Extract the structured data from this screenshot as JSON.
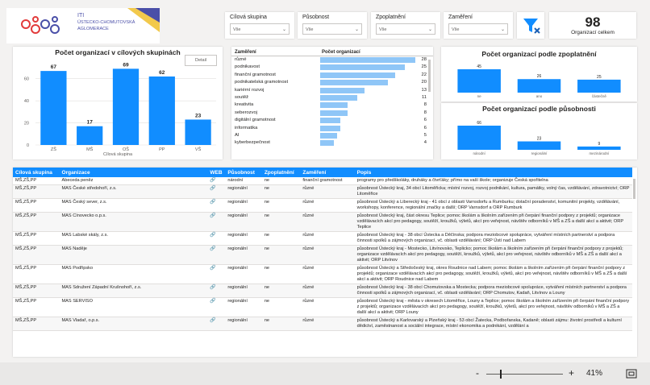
{
  "logo": {
    "line1": "ITI",
    "line2": "ÚSTECKO-CHOMUTOVSKÁ",
    "line3": "AGLOMERACE"
  },
  "slicers": [
    {
      "label": "Cílová skupina",
      "value": "Vše"
    },
    {
      "label": "Působnost",
      "value": "Vše"
    },
    {
      "label": "Zpoplatnění",
      "value": "Vše"
    },
    {
      "label": "Zaměření",
      "value": "Vše"
    }
  ],
  "kpi": {
    "value": "98",
    "label": "Organizací celkem"
  },
  "chart1": {
    "title": "Počet organizací v cílových skupinách",
    "button": "Detail",
    "xlabel": "Cílová skupina"
  },
  "zam": {
    "col1": "Zaměření",
    "col2": "Počet organizací"
  },
  "chart2": {
    "title": "Počet organizací podle zpoplatnění"
  },
  "chart3": {
    "title": "Počet organizací podle působnosti"
  },
  "chart_data": [
    {
      "type": "bar",
      "title": "Počet organizací v cílových skupinách",
      "categories": [
        "ZŠ",
        "MŠ",
        "OŠ",
        "PP",
        "VŠ"
      ],
      "values": [
        67,
        17,
        69,
        62,
        23
      ],
      "xlabel": "Cílová skupina",
      "ylabel": "",
      "ylim": [
        0,
        70
      ],
      "yticks": [
        0,
        20,
        40,
        60
      ]
    },
    {
      "type": "bar",
      "title": "Počet organizací podle zaměření",
      "categories": [
        "různé",
        "podnikavost",
        "finanční gramotnost",
        "podnikatelská gramotnost",
        "kariérní rozvoj",
        "soutěž",
        "kreativita",
        "seberozvoj",
        "digitální gramotnost",
        "informatika",
        "AI",
        "kyberbezpečnost"
      ],
      "values": [
        28,
        25,
        22,
        20,
        13,
        11,
        8,
        8,
        6,
        6,
        5,
        4
      ]
    },
    {
      "type": "bar",
      "title": "Počet organizací podle zpoplatnění",
      "categories": [
        "ne",
        "ano",
        "částečně"
      ],
      "values": [
        45,
        26,
        25
      ]
    },
    {
      "type": "bar",
      "title": "Počet organizací podle působnosti",
      "categories": [
        "národní",
        "regionální",
        "mezinárodní"
      ],
      "values": [
        66,
        23,
        9
      ]
    }
  ],
  "table": {
    "headers": [
      "Cílová skupina",
      "Organizace",
      "WEB",
      "Působnost",
      "Zpoplatnění",
      "Zaměření",
      "Popis"
    ],
    "rows": [
      [
        "MŠ,ZŠ,PP",
        "Abeceda peněz",
        "🔗",
        "národní",
        "ne",
        "finanční gramotnost",
        "programy pro předškoláky, druháky a čtvrťáky; přímo na vaší škole; organizuje Česká spořitelna"
      ],
      [
        "MŠ,ZŠ,PP",
        "MAS České středohoří, z.s.",
        "🔗",
        "regionální",
        "ne",
        "různé",
        "působnost Ústecký kraj, 34 obcí Litoměřicka; místní rozvoj, rozvoj podnikání, kultura, památky, volný čas, vzdělávání, zdravotnictví; ORP Litoměřice"
      ],
      [
        "MŠ,ZŠ,PP",
        "MAS Český sever, z.s.",
        "🔗",
        "regionální",
        "ne",
        "různé",
        "působnost Ústecký a Liberecký kraj - 41 obcí z oblasti Varnsdorfu a Rumburku; dotační poradenství, komunitní projekty, vzdělávání, workshopy, konference, regionální značky a další; ORP Varnsdorf a ORP Rumburk"
      ],
      [
        "MŠ,ZŠ,PP",
        "MAS Cínovecko o.p.s.",
        "🔗",
        "regionální",
        "ne",
        "různé",
        "působnost Ústecký kraj, část okresu Teplice; pomoc školám a školním zařízením při čerpání finanční podpory z projektů; organizace vzdělávacích akcí pro pedagogy, soutěží, kroužků, výletů, akcí pro veřejnost, návštěv odborníků v MŠ a ZŠ a další akcí a aktivit; ORP Teplice"
      ],
      [
        "MŠ,ZŠ,PP",
        "MAS Labské skály, z.s.",
        "🔗",
        "regionální",
        "ne",
        "různé",
        "působnost Ústecký kraj - 38 obcí Ústecka a Děčínska; podpora meziobcové spolupráce, vytváření místních partnerství a podpora činnosti spolků a zájmových organizací, vč. oblasti vzdělávání; ORP Ústí nad Labem"
      ],
      [
        "MŠ,ZŠ,PP",
        "MAS Naděje",
        "🔗",
        "regionální",
        "ne",
        "různé",
        "působnost Ústecký kraj - Mostecko, Litvínovsko, Teplicko; pomoc školám a školním zařízením při čerpání finanční podpory z projektů; organizace vzdělávacích akcí pro pedagogy, soutěží, kroužků, výletů, akcí pro veřejnost, návštěv odborníků v MŠ a ZŠ a další akcí a aktivit; ORP Litvínov"
      ],
      [
        "MŠ,ZŠ,PP",
        "MAS Podřipsko",
        "🔗",
        "regionální",
        "ne",
        "různé",
        "působnost Ústecký a Středočeský kraj, okres Roudnice nad Labem; pomoc školám a školním zařízením při čerpání finanční podpory z projektů; organizace vzdělávacích akcí pro pedagogy, soutěží, kroužků, výletů, akcí pro veřejnost, návštěv odborníků v MŠ a ZŠ a další akcí a aktivit; ORP Roudnice nad Labem"
      ],
      [
        "MŠ,ZŠ,PP",
        "MAS Sdružení Západní Krušnohoří, z.s.",
        "🔗",
        "regionální",
        "ne",
        "různé",
        "působnost Ústecký kraj - 38 obcí Chomutovska a Mostecka; podpora meziobcové spolupráce, vytváření místních partnerství a podpora činnosti spolků a zájmových organizací, vč. oblasti vzdělávání; ORP Chomutov, Kadaň, Litvínov a Louny"
      ],
      [
        "MŠ,ZŠ,PP",
        "MAS SERVISO",
        "🔗",
        "regionální",
        "ne",
        "různé",
        "působnost Ústecký kraj - města v okresech Litoměřice, Louny a Teplice; pomoc školám a školním zařízením při čerpání finanční podpory z projektů; organizace vzdělávacích akcí pro pedagogy, soutěží, kroužků, výletů, akcí pro veřejnost, návštěv odborníků v MŠ a ZŠ a další akcí a aktivit; ORP Louny"
      ],
      [
        "MŠ,ZŠ,PP",
        "MAS Vladař, o.p.s.",
        "🔗",
        "regionální",
        "ne",
        "různé",
        "působnost Ústecký a Karlovarský a Plzeňský kraj - 53 obcí Žatecka, Podbořanska, Kadaně; oblasti zájmu: životní prostředí a kulturní dědictví, zaměstnanost a sociální integrace, místní ekonomika a podnikání, vzdělání a"
      ]
    ]
  },
  "footer": {
    "minus": "-",
    "plus": "+",
    "zoom": "41%"
  },
  "colors": {
    "bar": "#118dff",
    "accent": "#118dff"
  }
}
